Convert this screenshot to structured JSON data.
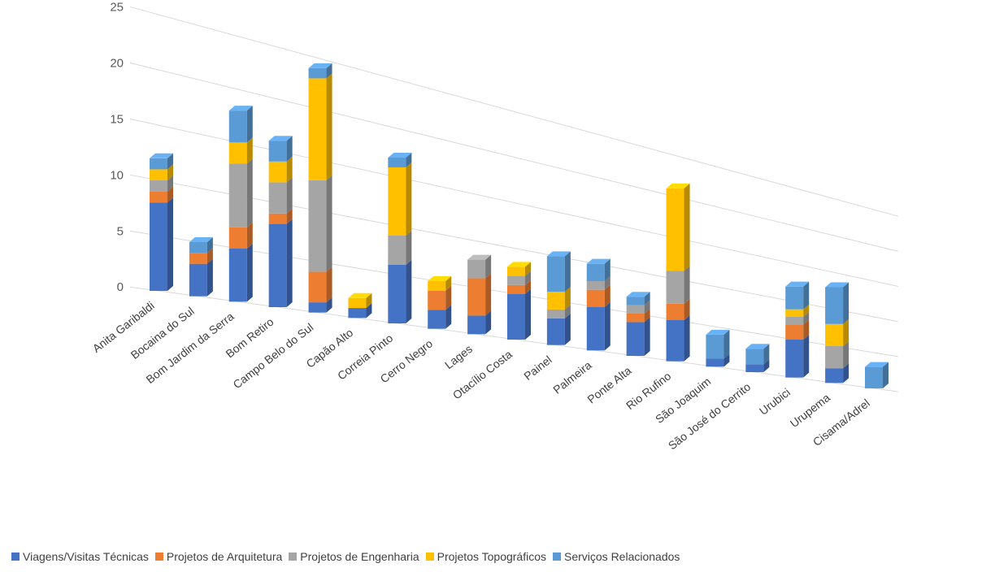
{
  "chart_data": {
    "type": "bar",
    "stacked": true,
    "style": "3d-perspective",
    "title": "",
    "xlabel": "",
    "ylabel": "",
    "ylim": [
      0,
      25
    ],
    "yticks": [
      0,
      5,
      10,
      15,
      20,
      25
    ],
    "grid": true,
    "legend_position": "bottom",
    "categories": [
      "Anita Garibaldi",
      "Bocaina do Sul",
      "Bom Jardim da Serra",
      "Bom Retiro",
      "Campo Belo do Sul",
      "Capão Alto",
      "Correia Pinto",
      "Cerro Negro",
      "Lages",
      "Otacílio Costa",
      "Painel",
      "Palmeira",
      "Ponte Alta",
      "Rio Rufino",
      "São Joaquim",
      "São José do Cerrito",
      "Urubici",
      "Urupema",
      "Cisama/Adrel"
    ],
    "series": [
      {
        "name": "Viagens/Visitas Técnicas",
        "color": "#4472c4",
        "values": [
          8,
          3,
          5,
          8,
          1,
          1,
          6,
          2,
          2,
          5,
          3,
          5,
          4,
          5,
          1,
          1,
          5,
          2,
          0
        ]
      },
      {
        "name": "Projetos de Arquitetura",
        "color": "#ed7d31",
        "values": [
          1,
          1,
          2,
          1,
          3,
          0,
          0,
          2,
          4,
          1,
          0,
          2,
          1,
          2,
          0,
          0,
          2,
          0,
          0
        ]
      },
      {
        "name": "Projetos de Engenharia",
        "color": "#a5a5a5",
        "values": [
          1,
          0,
          6,
          3,
          9,
          0,
          3,
          0,
          2,
          1,
          1,
          1,
          1,
          4,
          0,
          0,
          1,
          3,
          0
        ]
      },
      {
        "name": "Projetos Topográficos",
        "color": "#ffc000",
        "values": [
          1,
          0,
          2,
          2,
          10,
          1,
          7,
          1,
          0,
          1,
          2,
          0,
          0,
          10,
          0,
          0,
          1,
          3,
          0
        ]
      },
      {
        "name": "Serviços Relacionados",
        "color": "#5b9bd5",
        "values": [
          1,
          1,
          3,
          2,
          1,
          0,
          1,
          0,
          0,
          0,
          4,
          2,
          1,
          0,
          3,
          2,
          3,
          5,
          3
        ]
      }
    ]
  }
}
